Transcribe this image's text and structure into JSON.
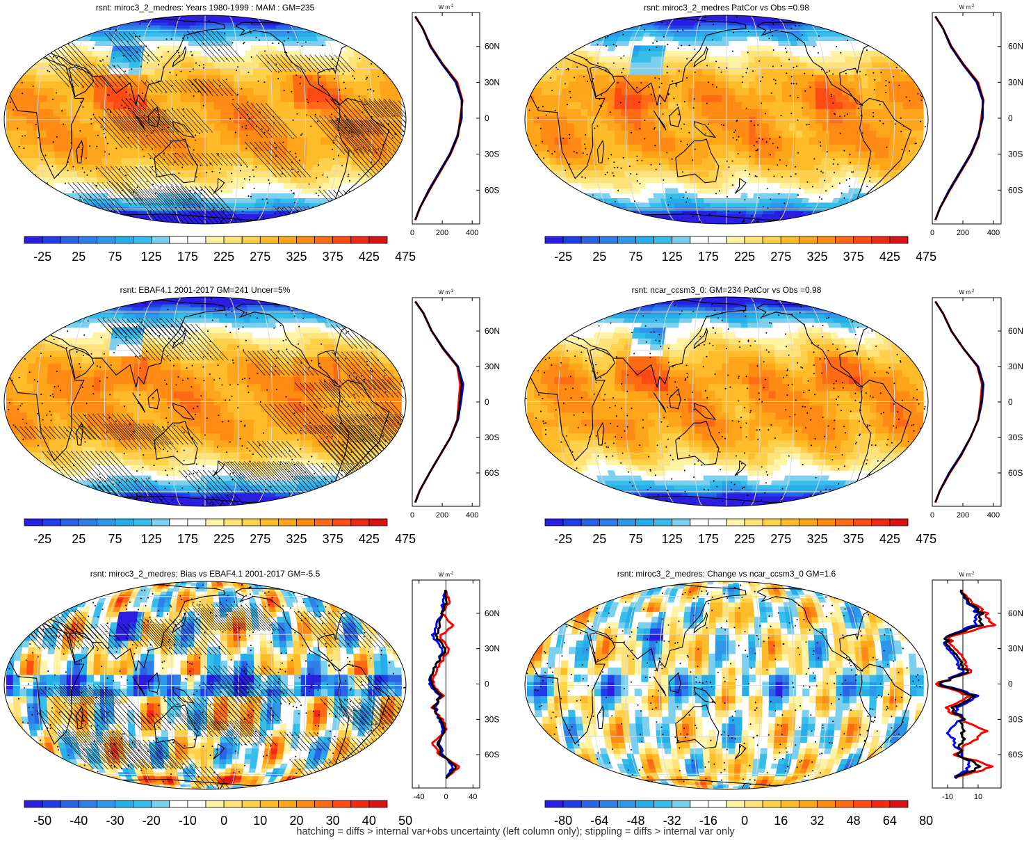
{
  "footer": "hatching = diffs > internal var+obs uncertainty (left column only); stippling = diffs > internal var only",
  "colors": {
    "clim_scale": [
      "#2a1ee0",
      "#1f3ee8",
      "#2b62e6",
      "#2f7fe8",
      "#2d98ea",
      "#26aee8",
      "#36bdea",
      "#7ccfee",
      "#ffffff",
      "#ffffff",
      "#fff3a6",
      "#ffe27a",
      "#ffd04a",
      "#ffbc2a",
      "#ffa51a",
      "#ff8b14",
      "#ff6b14",
      "#ff4a14",
      "#f02a14",
      "#d81414"
    ],
    "bias_scale": [
      "#2a1ee0",
      "#1f3ee8",
      "#2b62e6",
      "#2f7fe8",
      "#2d98ea",
      "#26aee8",
      "#36bdea",
      "#7ccfee",
      "#ffffff",
      "#ffffff",
      "#fff3a6",
      "#ffe27a",
      "#ffd04a",
      "#ffbc2a",
      "#ffa51a",
      "#ff8b14",
      "#ff6b14",
      "#ff4a14",
      "#f02a14",
      "#d81414"
    ],
    "zonal_model": "#0000ff",
    "zonal_obs": "#ff0000",
    "zonal_mean": "#000000"
  },
  "panels": [
    {
      "title": "rsnt: miroc3_2_medres: Years 1980-1999 : MAM : GM=235",
      "kind": "clim",
      "hatching": true,
      "colorbar": [
        "-25",
        "25",
        "75",
        "125",
        "175",
        "225",
        "275",
        "325",
        "375",
        "425",
        "475"
      ],
      "zonal": {
        "unit": "W m-2",
        "unit_base": "W m",
        "unit_sup": "-2",
        "xticks": [
          "0",
          "200",
          "400"
        ],
        "xlim": [
          0,
          450
        ],
        "yticks": [
          "60N",
          "30N",
          "0",
          "30S",
          "60S"
        ]
      }
    },
    {
      "title": "rsnt: miroc3_2_medres PatCor vs Obs =0.98",
      "kind": "clim",
      "hatching": false,
      "colorbar": [
        "-25",
        "25",
        "75",
        "125",
        "175",
        "225",
        "275",
        "325",
        "375",
        "425",
        "475"
      ],
      "zonal": {
        "unit": "W m-2",
        "unit_base": "W m",
        "unit_sup": "-2",
        "xticks": [
          "0",
          "200",
          "400"
        ],
        "xlim": [
          0,
          450
        ],
        "yticks": [
          "60N",
          "30N",
          "0",
          "30S",
          "60S"
        ]
      }
    },
    {
      "title": "rsnt: EBAF4.1 2001-2017 GM=241 Uncer=5%",
      "kind": "clim",
      "hatching": true,
      "colorbar": [
        "-25",
        "25",
        "75",
        "125",
        "175",
        "225",
        "275",
        "325",
        "375",
        "425",
        "475"
      ],
      "zonal": {
        "unit": "W m-2",
        "unit_base": "W m",
        "unit_sup": "-2",
        "xticks": [
          "0",
          "200",
          "400"
        ],
        "xlim": [
          0,
          450
        ],
        "yticks": [
          "60N",
          "30N",
          "0",
          "30S",
          "60S"
        ]
      }
    },
    {
      "title": "rsnt: ncar_ccsm3_0: GM=234 PatCor vs Obs =0.98",
      "kind": "clim",
      "hatching": false,
      "colorbar": [
        "-25",
        "25",
        "75",
        "125",
        "175",
        "225",
        "275",
        "325",
        "375",
        "425",
        "475"
      ],
      "zonal": {
        "unit": "W m-2",
        "unit_base": "W m",
        "unit_sup": "-2",
        "xticks": [
          "0",
          "200",
          "400"
        ],
        "xlim": [
          0,
          450
        ],
        "yticks": [
          "60N",
          "30N",
          "0",
          "30S",
          "60S"
        ]
      }
    },
    {
      "title": "rsnt: miroc3_2_medres: Bias vs EBAF4.1 2001-2017 GM=-5.5",
      "kind": "bias",
      "hatching": true,
      "colorbar": [
        "-50",
        "-40",
        "-30",
        "-20",
        "-10",
        "0",
        "10",
        "20",
        "30",
        "40",
        "50"
      ],
      "zonal": {
        "unit": "W m-2",
        "unit_base": "W m",
        "unit_sup": "-2",
        "xticks": [
          "-40",
          "0",
          "40"
        ],
        "xlim": [
          -50,
          50
        ],
        "yticks": [
          "60N",
          "30N",
          "0",
          "30S",
          "60S"
        ]
      }
    },
    {
      "title": "rsnt: miroc3_2_medres: Change vs ncar_ccsm3_0 GM=1.6",
      "kind": "change",
      "hatching": false,
      "colorbar": [
        "-80",
        "-64",
        "-48",
        "-32",
        "-16",
        "0",
        "16",
        "32",
        "48",
        "64",
        "80"
      ],
      "zonal": {
        "unit": "W m-2",
        "unit_base": "W m",
        "unit_sup": "-2",
        "xticks": [
          "-10",
          "10"
        ],
        "xlim": [
          -20,
          25
        ],
        "yticks": [
          "60N",
          "30N",
          "0",
          "30S",
          "60S"
        ]
      }
    }
  ],
  "chart_data": [
    {
      "type": "heatmap",
      "title": "rsnt: miroc3_2_medres: Years 1980-1999 : MAM : GM=235",
      "colorbar_ticks": [
        -25,
        25,
        75,
        125,
        175,
        225,
        275,
        325,
        375,
        425,
        475
      ],
      "zonal_profile": {
        "lat": [
          85,
          75,
          60,
          45,
          30,
          15,
          0,
          -15,
          -30,
          -45,
          -60,
          -75,
          -85
        ],
        "model": [
          20,
          70,
          120,
          200,
          290,
          330,
          330,
          300,
          250,
          180,
          110,
          50,
          20
        ],
        "obs": [
          20,
          70,
          125,
          205,
          300,
          335,
          320,
          305,
          255,
          185,
          115,
          50,
          20
        ]
      }
    },
    {
      "type": "heatmap",
      "title": "rsnt: miroc3_2_medres PatCor vs Obs =0.98",
      "colorbar_ticks": [
        -25,
        25,
        75,
        125,
        175,
        225,
        275,
        325,
        375,
        425,
        475
      ],
      "zonal_profile": {
        "lat": [
          85,
          75,
          60,
          45,
          30,
          15,
          0,
          -15,
          -30,
          -45,
          -60,
          -75,
          -85
        ],
        "model": [
          20,
          70,
          120,
          200,
          290,
          330,
          330,
          300,
          250,
          180,
          110,
          50,
          20
        ],
        "obs": [
          20,
          70,
          125,
          205,
          300,
          335,
          320,
          305,
          255,
          185,
          115,
          50,
          20
        ]
      }
    },
    {
      "type": "heatmap",
      "title": "rsnt: EBAF4.1 2001-2017 GM=241 Uncer=5%",
      "colorbar_ticks": [
        -25,
        25,
        75,
        125,
        175,
        225,
        275,
        325,
        375,
        425,
        475
      ],
      "zonal_profile": {
        "lat": [
          85,
          75,
          60,
          45,
          30,
          15,
          0,
          -15,
          -30,
          -45,
          -60,
          -75,
          -85
        ],
        "model": [
          20,
          75,
          130,
          210,
          305,
          340,
          325,
          305,
          255,
          185,
          115,
          50,
          20
        ],
        "obs": [
          20,
          75,
          130,
          205,
          300,
          320,
          310,
          300,
          255,
          185,
          115,
          50,
          20
        ]
      }
    },
    {
      "type": "heatmap",
      "title": "rsnt: ncar_ccsm3_0: GM=234 PatCor vs Obs =0.98",
      "colorbar_ticks": [
        -25,
        25,
        75,
        125,
        175,
        225,
        275,
        325,
        375,
        425,
        475
      ],
      "zonal_profile": {
        "lat": [
          85,
          75,
          60,
          45,
          30,
          15,
          0,
          -15,
          -30,
          -45,
          -60,
          -75,
          -85
        ],
        "model": [
          20,
          70,
          125,
          205,
          300,
          335,
          325,
          300,
          250,
          185,
          110,
          50,
          20
        ],
        "obs": [
          20,
          70,
          125,
          205,
          295,
          325,
          315,
          300,
          250,
          190,
          115,
          50,
          20
        ]
      }
    },
    {
      "type": "heatmap",
      "title": "rsnt: miroc3_2_medres: Bias vs EBAF4.1 2001-2017 GM=-5.5",
      "colorbar_ticks": [
        -50,
        -40,
        -30,
        -20,
        -10,
        0,
        10,
        20,
        30,
        40,
        50
      ],
      "zonal_profile": {
        "lat": [
          80,
          70,
          60,
          50,
          40,
          30,
          20,
          10,
          0,
          -10,
          -20,
          -30,
          -40,
          -50,
          -60,
          -70,
          -80
        ],
        "model": [
          0,
          -5,
          -5,
          -15,
          -20,
          -5,
          -10,
          -20,
          -25,
          -10,
          -15,
          -10,
          -5,
          -10,
          -5,
          10,
          0
        ],
        "obs": [
          0,
          5,
          -5,
          10,
          -10,
          5,
          -5,
          -15,
          -20,
          -5,
          -20,
          -5,
          0,
          -20,
          -10,
          20,
          0
        ],
        "mean": [
          0,
          0,
          -5,
          -10,
          -15,
          0,
          -10,
          -20,
          -22,
          -8,
          -18,
          -8,
          -2,
          -12,
          -8,
          15,
          0
        ]
      }
    },
    {
      "type": "heatmap",
      "title": "rsnt: miroc3_2_medres: Change vs ncar_ccsm3_0 GM=1.6",
      "colorbar_ticks": [
        -80,
        -64,
        -48,
        -32,
        -16,
        0,
        16,
        32,
        48,
        64,
        80
      ],
      "zonal_profile": {
        "lat": [
          80,
          70,
          60,
          50,
          40,
          30,
          20,
          10,
          0,
          -10,
          -20,
          -30,
          -40,
          -50,
          -60,
          -70,
          -80
        ],
        "model": [
          0,
          2,
          10,
          8,
          -12,
          -10,
          -5,
          0,
          -15,
          10,
          -5,
          0,
          -10,
          -5,
          0,
          5,
          -5
        ],
        "obs": [
          0,
          5,
          15,
          20,
          -10,
          -5,
          0,
          5,
          -18,
          5,
          -12,
          0,
          15,
          5,
          -5,
          20,
          -5
        ],
        "mean": [
          0,
          3,
          12,
          12,
          -12,
          -8,
          -3,
          3,
          -16,
          8,
          -8,
          0,
          0,
          0,
          -3,
          12,
          -5
        ]
      }
    }
  ]
}
